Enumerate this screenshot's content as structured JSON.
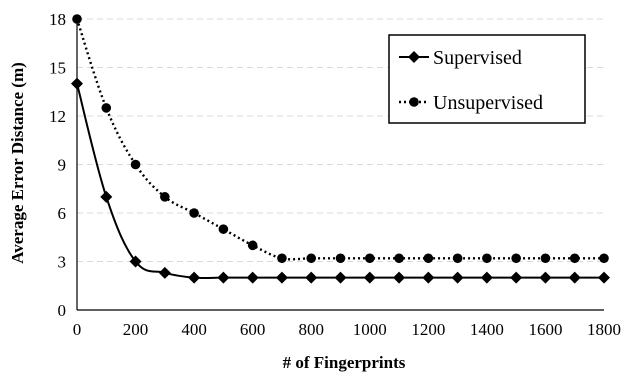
{
  "chart_data": {
    "type": "line",
    "xlabel": "# of Fingerprints",
    "ylabel": "Average Error Distance (m)",
    "xlim": [
      0,
      1800
    ],
    "ylim": [
      0,
      18
    ],
    "x_ticks": [
      0,
      200,
      400,
      600,
      800,
      1000,
      1200,
      1400,
      1600,
      1800
    ],
    "y_ticks": [
      0,
      3,
      6,
      9,
      12,
      15,
      18
    ],
    "grid": "horizontal dashed",
    "legend_position": "top-right",
    "x": [
      0,
      100,
      200,
      300,
      400,
      500,
      600,
      700,
      800,
      900,
      1000,
      1100,
      1200,
      1300,
      1400,
      1500,
      1600,
      1700,
      1800
    ],
    "series": [
      {
        "name": "Supervised",
        "line_style": "solid",
        "marker": "diamond",
        "values": [
          14,
          7,
          3,
          2.3,
          2,
          2,
          2,
          2,
          2,
          2,
          2,
          2,
          2,
          2,
          2,
          2,
          2,
          2,
          2
        ]
      },
      {
        "name": "Unsupervised",
        "line_style": "dotted",
        "marker": "circle",
        "values": [
          18,
          12.5,
          9,
          7,
          6,
          5,
          4,
          3.2,
          3.2,
          3.2,
          3.2,
          3.2,
          3.2,
          3.2,
          3.2,
          3.2,
          3.2,
          3.2,
          3.2
        ]
      }
    ],
    "colors": {
      "line": "#000000",
      "grid": "#d9d9d9"
    }
  }
}
